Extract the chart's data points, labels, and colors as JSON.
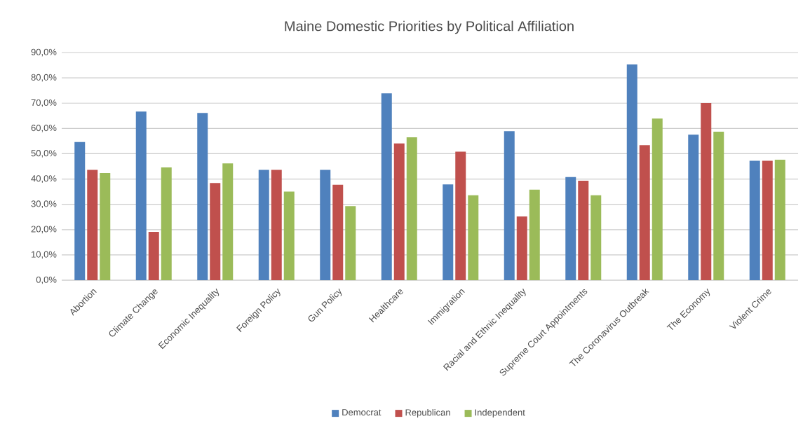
{
  "chart_data": {
    "type": "bar",
    "title": "Maine Domestic Priorities by Political Affiliation",
    "categories": [
      "Abortion",
      "Climate Change",
      "Economic Inequality",
      "Foreign Policy",
      "Gun Policy",
      "Healthcare",
      "Immigration",
      "Racial and Ethnic Inequality",
      "Supreme Court Appointments",
      "The Coronavirus Outbreak",
      "The Economy",
      "Violent Crime"
    ],
    "series": [
      {
        "name": "Democrat",
        "color": "#4f81bd",
        "values": [
          54.6,
          66.7,
          66.1,
          43.6,
          43.6,
          73.9,
          37.9,
          58.9,
          40.8,
          85.3,
          57.5,
          47.2
        ]
      },
      {
        "name": "Republican",
        "color": "#c0504d",
        "values": [
          43.6,
          19.1,
          38.4,
          43.6,
          37.7,
          54.1,
          50.8,
          25.2,
          39.3,
          53.4,
          70.1,
          47.2
        ]
      },
      {
        "name": "Independent",
        "color": "#9bbb59",
        "values": [
          42.4,
          44.6,
          46.2,
          35.0,
          29.3,
          56.5,
          33.6,
          35.8,
          33.6,
          63.9,
          58.7,
          47.6
        ]
      }
    ],
    "ylim": [
      0,
      90
    ],
    "yticks": [
      {
        "value": 0,
        "label": "0,0%"
      },
      {
        "value": 10,
        "label": "10,0%"
      },
      {
        "value": 20,
        "label": "20,0%"
      },
      {
        "value": 30,
        "label": "30,0%"
      },
      {
        "value": 40,
        "label": "40,0%"
      },
      {
        "value": 50,
        "label": "50,0%"
      },
      {
        "value": 60,
        "label": "60,0%"
      },
      {
        "value": 70,
        "label": "70,0%"
      },
      {
        "value": 80,
        "label": "80,0%"
      },
      {
        "value": 90,
        "label": "90,0%"
      }
    ],
    "grid": "y",
    "legend": "bottom"
  }
}
